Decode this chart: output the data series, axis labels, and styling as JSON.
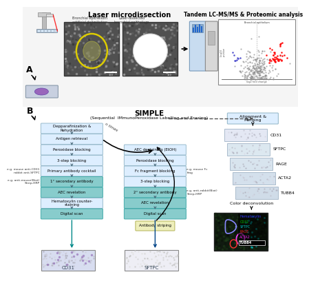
{
  "title": "Laser microdissection",
  "title2": "Tandem LC-MS/MS & Proteomic analysis",
  "panel_a_label": "A",
  "panel_b_label": "B",
  "simple_title": "SIMPLE",
  "simple_subtitle": "(Sequential  IMmunoPeroxidase Labelling and Erasing)",
  "left_boxes": [
    "Depparafinization &\nRehydration",
    "Antigen retrieval",
    "Peroxidase blocking",
    "3-step blocking",
    "Primary antibody cocktail",
    "1° secondary antibody",
    "AEC revelation",
    "Hematoxylin counter-\nstaining",
    "Digital scan"
  ],
  "right_boxes": [
    "AEC destaining (EtOH)",
    "Peroxidase blocking",
    "Fc fragment blocking",
    "3-step blocking",
    "2° secondary antibody",
    "AEC revelation",
    "Digital scan"
  ],
  "left_colors": [
    "light",
    "light",
    "light",
    "light",
    "light",
    "teal",
    "teal",
    "light",
    "teal"
  ],
  "right_colors": [
    "light",
    "light",
    "light",
    "light",
    "teal",
    "teal",
    "teal"
  ],
  "layer_labels": [
    "CD31",
    "SFTPC",
    "RAGE",
    "ACTA2",
    "TUBB4"
  ],
  "alignment_label": "Alignment &\nMerging",
  "color_deconv_label": "Color deconvolution",
  "bottom_label1": "CD31",
  "bottom_label2": "SFTPC",
  "antibody_striping": "Antibody striping",
  "legend_items": [
    [
      "Hematoxylin",
      "#3333ff"
    ],
    [
      "CD31",
      "#00bb00"
    ],
    [
      "SFTPC",
      "#00bbbb"
    ],
    [
      "RAGE",
      "#ee2222"
    ],
    [
      "ACTA2",
      "#ee22ee"
    ],
    [
      "TUBB4",
      "#ffffff"
    ]
  ],
  "n_times_label": "n times",
  "bg_color": "#ffffff",
  "box_light_fc": "#ddeeff",
  "box_light_ec": "#99bbcc",
  "box_teal_fc": "#88cccc",
  "box_teal_ec": "#44aaaa",
  "box_yellow_fc": "#eeeebb",
  "box_yellow_ec": "#bbbb66",
  "left_note1": "e.g. mouse anti-CD31\nrabbit anti-SFTPC",
  "left_note2": "e.g. anti-mouse(Biot)\nStrep-HRP",
  "right_note1": "e.g. mouse Fc\nfrag",
  "right_note2": "e.g. anti-rabbit(Biot)\nStrep-HRP",
  "bronchial1": "Bronchial epithelium\nartificial delimitation",
  "bronchial2": "Laser-dissected\nbronchial epithelium"
}
